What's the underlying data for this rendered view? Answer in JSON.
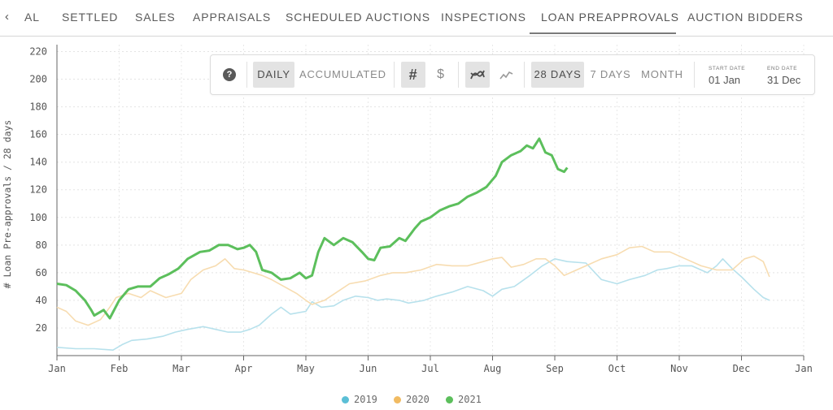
{
  "tabs": [
    {
      "label": "AL",
      "active": false
    },
    {
      "label": "SETTLED",
      "active": false
    },
    {
      "label": "SALES",
      "active": false
    },
    {
      "label": "APPRAISALS",
      "active": false
    },
    {
      "label": "SCHEDULED AUCTIONS",
      "active": false
    },
    {
      "label": "INSPECTIONS",
      "active": false
    },
    {
      "label": "LOAN PREAPPROVALS",
      "active": true
    },
    {
      "label": "AUCTION BIDDERS",
      "active": false
    }
  ],
  "toolbar": {
    "help_icon": "question-circle-icon",
    "help_glyph": "?",
    "daily_label": "DAILY",
    "accumulated_label": "ACCUMULATED",
    "count_symbol": "#",
    "currency_symbol": "$",
    "smooth_icon": "smooth-line-icon",
    "raw_icon": "raw-line-icon",
    "days28_label": "28 DAYS",
    "days7_label": "7 DAYS",
    "month_label": "MONTH",
    "start_date_label": "START DATE",
    "start_date_value": "01 Jan",
    "end_date_label": "END DATE",
    "end_date_value": "31 Dec"
  },
  "chart_data": {
    "type": "line",
    "title": "",
    "ylabel": "# Loan Pre-approvals / 28 days",
    "xlabel": "",
    "ylim": [
      0,
      225
    ],
    "y_ticks": [
      20,
      40,
      60,
      80,
      100,
      120,
      140,
      160,
      180,
      200,
      220
    ],
    "x_ticks": [
      "Jan",
      "Feb",
      "Mar",
      "Apr",
      "May",
      "Jun",
      "Jul",
      "Aug",
      "Sep",
      "Oct",
      "Nov",
      "Dec",
      "Jan"
    ],
    "grid": true,
    "legend_position": "bottom-center",
    "series": [
      {
        "name": "2019",
        "color": "#b7e1ec",
        "points": [
          [
            0,
            6
          ],
          [
            0.3,
            5
          ],
          [
            0.6,
            5
          ],
          [
            0.9,
            4
          ],
          [
            1.05,
            8
          ],
          [
            1.2,
            11
          ],
          [
            1.45,
            12
          ],
          [
            1.7,
            14
          ],
          [
            1.9,
            17
          ],
          [
            2.1,
            19
          ],
          [
            2.35,
            21
          ],
          [
            2.55,
            19
          ],
          [
            2.75,
            17
          ],
          [
            2.95,
            17
          ],
          [
            3.1,
            19
          ],
          [
            3.25,
            22
          ],
          [
            3.45,
            30
          ],
          [
            3.6,
            35
          ],
          [
            3.75,
            30
          ],
          [
            4.0,
            32
          ],
          [
            4.1,
            39
          ],
          [
            4.25,
            35
          ],
          [
            4.45,
            36
          ],
          [
            4.6,
            40
          ],
          [
            4.8,
            43
          ],
          [
            5.0,
            42
          ],
          [
            5.15,
            40
          ],
          [
            5.3,
            41
          ],
          [
            5.5,
            40
          ],
          [
            5.65,
            38
          ],
          [
            5.9,
            40
          ],
          [
            6.1,
            43
          ],
          [
            6.35,
            46
          ],
          [
            6.6,
            50
          ],
          [
            6.85,
            47
          ],
          [
            7.0,
            43
          ],
          [
            7.15,
            48
          ],
          [
            7.35,
            50
          ],
          [
            7.6,
            58
          ],
          [
            7.8,
            65
          ],
          [
            8.0,
            70
          ],
          [
            8.2,
            68
          ],
          [
            8.5,
            67
          ],
          [
            8.75,
            55
          ],
          [
            9.0,
            52
          ],
          [
            9.2,
            55
          ],
          [
            9.45,
            58
          ],
          [
            9.65,
            62
          ],
          [
            9.8,
            63
          ],
          [
            10.0,
            65
          ],
          [
            10.2,
            65
          ],
          [
            10.45,
            60
          ],
          [
            10.6,
            65
          ],
          [
            10.7,
            70
          ],
          [
            10.85,
            63
          ],
          [
            11.0,
            57
          ],
          [
            11.2,
            48
          ],
          [
            11.35,
            42
          ],
          [
            11.45,
            40
          ]
        ]
      },
      {
        "name": "2020",
        "color": "#f7dcb0",
        "points": [
          [
            0,
            35
          ],
          [
            0.15,
            32
          ],
          [
            0.3,
            25
          ],
          [
            0.5,
            22
          ],
          [
            0.7,
            26
          ],
          [
            0.85,
            35
          ],
          [
            0.95,
            42
          ],
          [
            1.15,
            45
          ],
          [
            1.35,
            42
          ],
          [
            1.5,
            47
          ],
          [
            1.75,
            42
          ],
          [
            2.0,
            45
          ],
          [
            2.15,
            55
          ],
          [
            2.35,
            62
          ],
          [
            2.55,
            65
          ],
          [
            2.7,
            70
          ],
          [
            2.85,
            63
          ],
          [
            3.0,
            62
          ],
          [
            3.15,
            60
          ],
          [
            3.3,
            58
          ],
          [
            3.45,
            55
          ],
          [
            3.65,
            50
          ],
          [
            3.85,
            45
          ],
          [
            4.0,
            40
          ],
          [
            4.1,
            37
          ],
          [
            4.3,
            40
          ],
          [
            4.5,
            46
          ],
          [
            4.7,
            52
          ],
          [
            4.95,
            54
          ],
          [
            5.2,
            58
          ],
          [
            5.4,
            60
          ],
          [
            5.6,
            60
          ],
          [
            5.85,
            62
          ],
          [
            6.1,
            66
          ],
          [
            6.35,
            65
          ],
          [
            6.6,
            65
          ],
          [
            6.85,
            68
          ],
          [
            7.0,
            70
          ],
          [
            7.15,
            71
          ],
          [
            7.3,
            64
          ],
          [
            7.5,
            66
          ],
          [
            7.7,
            70
          ],
          [
            7.85,
            70
          ],
          [
            8.0,
            65
          ],
          [
            8.15,
            58
          ],
          [
            8.35,
            62
          ],
          [
            8.5,
            65
          ],
          [
            8.75,
            70
          ],
          [
            9.0,
            73
          ],
          [
            9.2,
            78
          ],
          [
            9.4,
            79
          ],
          [
            9.6,
            75
          ],
          [
            9.85,
            75
          ],
          [
            10.1,
            70
          ],
          [
            10.35,
            65
          ],
          [
            10.6,
            62
          ],
          [
            10.85,
            62
          ],
          [
            11.05,
            70
          ],
          [
            11.2,
            72
          ],
          [
            11.35,
            68
          ],
          [
            11.45,
            57
          ]
        ]
      },
      {
        "name": "2021",
        "color": "#5cbf5c",
        "points": [
          [
            0,
            52
          ],
          [
            0.15,
            51
          ],
          [
            0.3,
            47
          ],
          [
            0.45,
            40
          ],
          [
            0.55,
            33
          ],
          [
            0.6,
            29
          ],
          [
            0.75,
            33
          ],
          [
            0.85,
            27
          ],
          [
            1.0,
            40
          ],
          [
            1.15,
            48
          ],
          [
            1.3,
            50
          ],
          [
            1.5,
            50
          ],
          [
            1.65,
            56
          ],
          [
            1.8,
            59
          ],
          [
            1.95,
            63
          ],
          [
            2.1,
            70
          ],
          [
            2.3,
            75
          ],
          [
            2.45,
            76
          ],
          [
            2.6,
            80
          ],
          [
            2.75,
            80
          ],
          [
            2.9,
            77
          ],
          [
            3.0,
            78
          ],
          [
            3.1,
            80
          ],
          [
            3.2,
            75
          ],
          [
            3.3,
            62
          ],
          [
            3.45,
            60
          ],
          [
            3.6,
            55
          ],
          [
            3.75,
            56
          ],
          [
            3.9,
            60
          ],
          [
            4.0,
            56
          ],
          [
            4.1,
            58
          ],
          [
            4.2,
            75
          ],
          [
            4.3,
            85
          ],
          [
            4.45,
            80
          ],
          [
            4.6,
            85
          ],
          [
            4.75,
            82
          ],
          [
            4.9,
            75
          ],
          [
            5.0,
            70
          ],
          [
            5.1,
            69
          ],
          [
            5.2,
            78
          ],
          [
            5.35,
            79
          ],
          [
            5.5,
            85
          ],
          [
            5.6,
            83
          ],
          [
            5.75,
            92
          ],
          [
            5.85,
            97
          ],
          [
            6.0,
            100
          ],
          [
            6.15,
            105
          ],
          [
            6.3,
            108
          ],
          [
            6.45,
            110
          ],
          [
            6.6,
            115
          ],
          [
            6.75,
            118
          ],
          [
            6.9,
            122
          ],
          [
            7.05,
            130
          ],
          [
            7.15,
            140
          ],
          [
            7.3,
            145
          ],
          [
            7.45,
            148
          ],
          [
            7.55,
            152
          ],
          [
            7.65,
            150
          ],
          [
            7.75,
            157
          ],
          [
            7.85,
            147
          ],
          [
            7.95,
            145
          ],
          [
            8.05,
            135
          ],
          [
            8.15,
            133
          ],
          [
            8.2,
            136
          ]
        ]
      }
    ]
  }
}
